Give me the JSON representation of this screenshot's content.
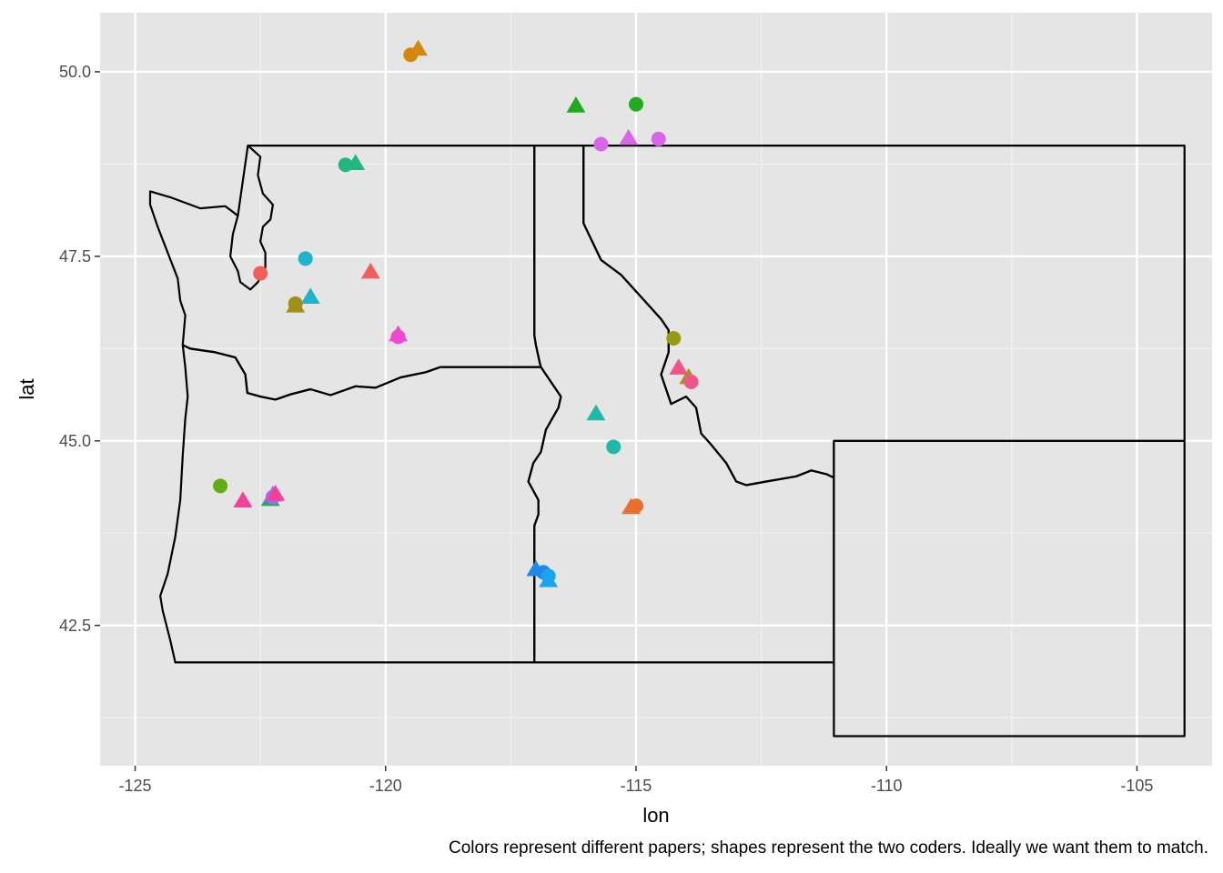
{
  "chart_data": {
    "type": "scatter",
    "xlabel": "lon",
    "ylabel": "lat",
    "caption": "Colors represent different papers; shapes represent the two coders. Ideally we want them to match.",
    "xlim": [
      -125.7,
      -103.5
    ],
    "ylim": [
      40.6,
      50.8
    ],
    "x_ticks": [
      -125,
      -120,
      -115,
      -110,
      -105
    ],
    "x_tick_labels": [
      "-125",
      "-120",
      "-115",
      "-110",
      "-105"
    ],
    "y_ticks": [
      42.5,
      45.0,
      47.5,
      50.0
    ],
    "y_tick_labels": [
      "42.5",
      "45.0",
      "47.5",
      "50.0"
    ],
    "grid": true,
    "background": "#e5e5e5",
    "points": [
      {
        "lon": -119.5,
        "lat": 50.23,
        "shape": "circle",
        "color": "#d4880e"
      },
      {
        "lon": -119.35,
        "lat": 50.3,
        "shape": "triangle",
        "color": "#d4880e"
      },
      {
        "lon": -116.2,
        "lat": 49.53,
        "shape": "triangle",
        "color": "#1faa20"
      },
      {
        "lon": -115.0,
        "lat": 49.56,
        "shape": "circle",
        "color": "#1faa20"
      },
      {
        "lon": -115.7,
        "lat": 49.02,
        "shape": "circle",
        "color": "#d966ea"
      },
      {
        "lon": -115.15,
        "lat": 49.09,
        "shape": "triangle",
        "color": "#d966ea"
      },
      {
        "lon": -114.55,
        "lat": 49.09,
        "shape": "circle",
        "color": "#d966ea"
      },
      {
        "lon": -120.8,
        "lat": 48.74,
        "shape": "circle",
        "color": "#22b77d"
      },
      {
        "lon": -120.6,
        "lat": 48.75,
        "shape": "triangle",
        "color": "#22b77d"
      },
      {
        "lon": -121.6,
        "lat": 47.47,
        "shape": "circle",
        "color": "#1fb3cc"
      },
      {
        "lon": -121.5,
        "lat": 46.94,
        "shape": "triangle",
        "color": "#1fb3cc"
      },
      {
        "lon": -122.5,
        "lat": 47.27,
        "shape": "circle",
        "color": "#f05f5a"
      },
      {
        "lon": -120.3,
        "lat": 47.28,
        "shape": "triangle",
        "color": "#f05f5a"
      },
      {
        "lon": -121.8,
        "lat": 46.86,
        "shape": "circle",
        "color": "#a38f16"
      },
      {
        "lon": -121.8,
        "lat": 46.82,
        "shape": "triangle",
        "color": "#a38f16"
      },
      {
        "lon": -119.75,
        "lat": 46.41,
        "shape": "circle",
        "color": "#f148d2"
      },
      {
        "lon": -119.75,
        "lat": 46.43,
        "shape": "triangle",
        "color": "#f148d2"
      },
      {
        "lon": -114.25,
        "lat": 46.39,
        "shape": "circle",
        "color": "#979b10"
      },
      {
        "lon": -113.95,
        "lat": 45.85,
        "shape": "triangle",
        "color": "#979b10"
      },
      {
        "lon": -114.15,
        "lat": 45.98,
        "shape": "triangle",
        "color": "#f1548a"
      },
      {
        "lon": -113.9,
        "lat": 45.8,
        "shape": "circle",
        "color": "#f1548a"
      },
      {
        "lon": -115.8,
        "lat": 45.36,
        "shape": "triangle",
        "color": "#1fb9a9"
      },
      {
        "lon": -115.45,
        "lat": 44.92,
        "shape": "circle",
        "color": "#1fb9a9"
      },
      {
        "lon": -123.3,
        "lat": 44.39,
        "shape": "circle",
        "color": "#62ad10"
      },
      {
        "lon": -122.3,
        "lat": 44.2,
        "shape": "triangle",
        "color": "#2aa76a"
      },
      {
        "lon": -122.25,
        "lat": 44.24,
        "shape": "circle",
        "color": "#9f6dee"
      },
      {
        "lon": -122.25,
        "lat": 44.26,
        "shape": "triangle",
        "color": "#9f6dee"
      },
      {
        "lon": -122.85,
        "lat": 44.18,
        "shape": "triangle",
        "color": "#f43f9b"
      },
      {
        "lon": -122.2,
        "lat": 44.27,
        "shape": "triangle",
        "color": "#f43f9b"
      },
      {
        "lon": -115.0,
        "lat": 44.12,
        "shape": "circle",
        "color": "#ea6f2e"
      },
      {
        "lon": -115.1,
        "lat": 44.09,
        "shape": "triangle",
        "color": "#ea6f2e"
      },
      {
        "lon": -117.0,
        "lat": 43.25,
        "shape": "triangle",
        "color": "#1f87e6"
      },
      {
        "lon": -116.85,
        "lat": 43.22,
        "shape": "circle",
        "color": "#1f87e6"
      },
      {
        "lon": -116.75,
        "lat": 43.17,
        "shape": "circle",
        "color": "#1aa3f0"
      },
      {
        "lon": -116.75,
        "lat": 43.1,
        "shape": "triangle",
        "color": "#1aa3f0"
      }
    ]
  }
}
